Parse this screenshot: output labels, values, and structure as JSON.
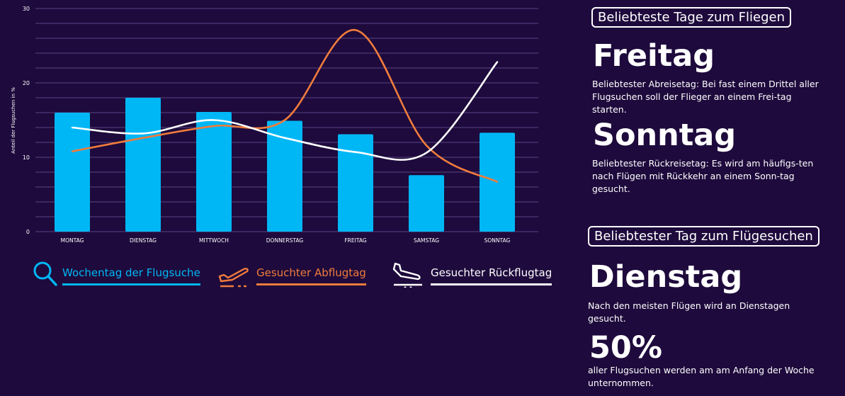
{
  "colors": {
    "background": "#1e0a3c",
    "bars": "#00b7f5",
    "departure": "#f07c3c",
    "return": "#ffffff",
    "grid": "#5b4785"
  },
  "chart_data": {
    "type": "bar",
    "ylabel": "Anteil der Flugsuchen in %",
    "ylim": [
      0,
      30
    ],
    "yticks": [
      "0",
      "10",
      "20",
      "30"
    ],
    "grid": true,
    "categories": [
      "MONTAG",
      "DIENSTAG",
      "MITTWOCH",
      "DONNERSTAG",
      "FREITAG",
      "SAMSTAG",
      "SONNTAG"
    ],
    "series": [
      {
        "name": "Wochentag der Flugsuche",
        "type": "bar",
        "values": [
          16.0,
          18.0,
          16.1,
          14.9,
          13.1,
          7.6,
          13.3
        ]
      },
      {
        "name": "Gesuchter Abflugtag",
        "type": "line",
        "values": [
          10.8,
          12.6,
          14.2,
          15.0,
          27.1,
          11.6,
          6.7
        ]
      },
      {
        "name": "Gesuchter Rückflugtag",
        "type": "line",
        "values": [
          14.0,
          13.2,
          15.0,
          12.6,
          10.7,
          10.6,
          22.8
        ]
      }
    ]
  },
  "legend": [
    {
      "label": "Wochentag der Flugsuche",
      "icon": "search-icon"
    },
    {
      "label": "Gesuchter Abflugtag",
      "icon": "plane-takeoff-icon"
    },
    {
      "label": "Gesuchter Rückflugtag",
      "icon": "plane-landing-icon"
    }
  ],
  "panel": {
    "heading1": "Beliebteste Tage zum Fliegen",
    "day1": "Freitag",
    "desc1": "Beliebtester Abreisetag: Bei fast einem Drittel aller Flugsuchen soll der Flieger an einem Frei-tag starten.",
    "day2": "Sonntag",
    "desc2": "Beliebtester Rückreisetag: Es wird am häufigs-ten nach Flügen mit Rückkehr an einem Sonn-tag gesucht.",
    "heading2": "Beliebtester Tag zum Flügesuchen",
    "day3": "Dienstag",
    "desc3": "Nach den meisten Flügen wird an Dienstagen gesucht.",
    "stat": "50%",
    "desc4": "aller Flugsuchen werden am am Anfang der Woche unternommen."
  }
}
